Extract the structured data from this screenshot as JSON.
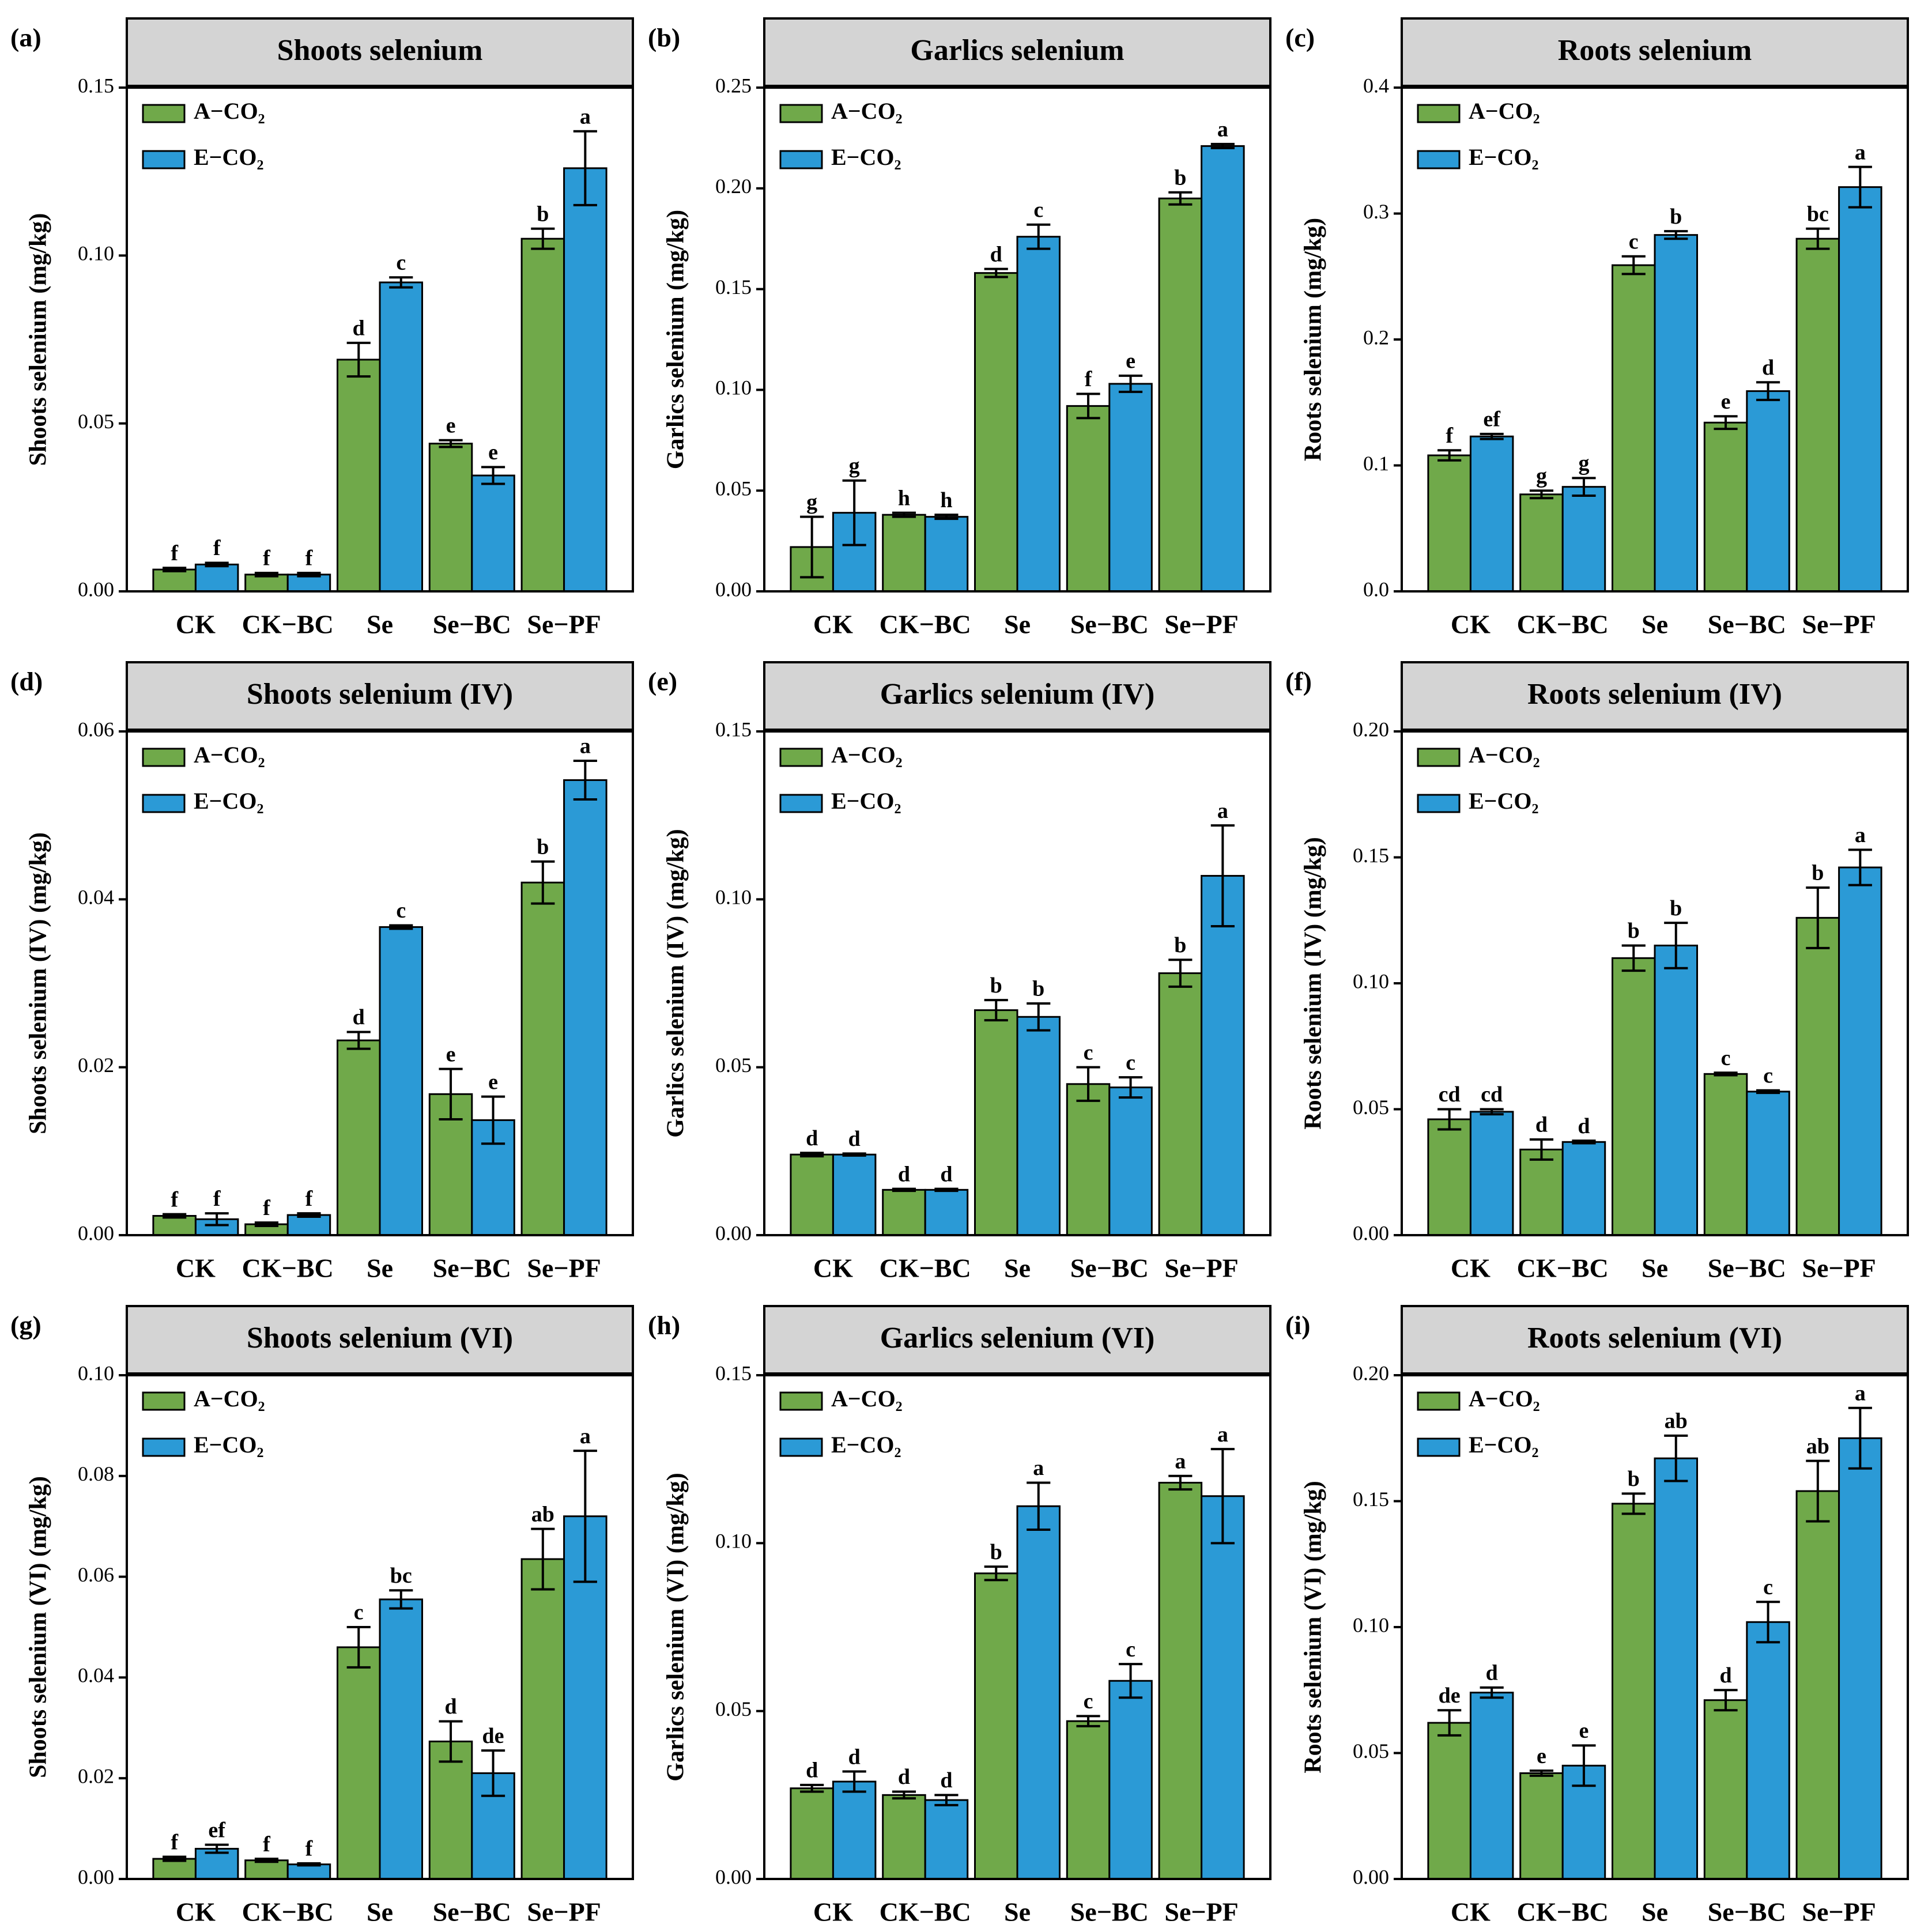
{
  "chart_data": [
    {
      "type": "bar",
      "panel": "(a)",
      "title": "Shoots selenium",
      "ylabel": "Shoots selenium (mg/kg)",
      "categories": [
        "CK",
        "CK−BC",
        "Se",
        "Se−BC",
        "Se−PF"
      ],
      "legend": "upper left",
      "ylim": [
        0,
        0.15
      ],
      "yticks": [
        {
          "value": 0,
          "label": "0.00"
        },
        {
          "value": 0.05,
          "label": "0.05"
        },
        {
          "value": 0.1,
          "label": "0.10"
        },
        {
          "value": 0.15,
          "label": "0.15"
        }
      ],
      "series": [
        {
          "name": "A−CO₂",
          "color": "#70a94a",
          "values": [
            0.0065,
            0.005,
            0.069,
            0.044,
            0.105
          ],
          "errors": [
            0.0005,
            0.0005,
            0.005,
            0.001,
            0.003
          ],
          "letters": [
            "f",
            "f",
            "d",
            "e",
            "b"
          ]
        },
        {
          "name": "E−CO₂",
          "color": "#2b9ad6",
          "values": [
            0.008,
            0.005,
            0.092,
            0.0345,
            0.126
          ],
          "errors": [
            0.0005,
            0.0005,
            0.0015,
            0.0025,
            0.011
          ],
          "letters": [
            "f",
            "f",
            "c",
            "e",
            "a"
          ]
        }
      ]
    },
    {
      "type": "bar",
      "panel": "(b)",
      "title": "Garlics selenium",
      "ylabel": "Garlics selenium (mg/kg)",
      "categories": [
        "CK",
        "CK−BC",
        "Se",
        "Se−BC",
        "Se−PF"
      ],
      "legend": "upper left",
      "ylim": [
        0,
        0.25
      ],
      "yticks": [
        {
          "value": 0,
          "label": "0.00"
        },
        {
          "value": 0.05,
          "label": "0.05"
        },
        {
          "value": 0.1,
          "label": "0.10"
        },
        {
          "value": 0.15,
          "label": "0.15"
        },
        {
          "value": 0.2,
          "label": "0.20"
        },
        {
          "value": 0.25,
          "label": "0.25"
        }
      ],
      "series": [
        {
          "name": "A−CO₂",
          "color": "#70a94a",
          "values": [
            0.022,
            0.038,
            0.158,
            0.092,
            0.195
          ],
          "errors": [
            0.015,
            0.001,
            0.002,
            0.006,
            0.003
          ],
          "letters": [
            "g",
            "h",
            "d",
            "f",
            "b"
          ]
        },
        {
          "name": "E−CO₂",
          "color": "#2b9ad6",
          "values": [
            0.039,
            0.037,
            0.176,
            0.103,
            0.221
          ],
          "errors": [
            0.016,
            0.001,
            0.006,
            0.004,
            0.001
          ],
          "letters": [
            "g",
            "h",
            "c",
            "e",
            "a"
          ]
        }
      ]
    },
    {
      "type": "bar",
      "panel": "(c)",
      "title": "Roots selenium",
      "ylabel": "Roots selenium (mg/kg)",
      "categories": [
        "CK",
        "CK−BC",
        "Se",
        "Se−BC",
        "Se−PF"
      ],
      "legend": "upper left",
      "ylim": [
        0,
        0.4
      ],
      "yticks": [
        {
          "value": 0,
          "label": "0.0"
        },
        0.1,
        0.2,
        0.3,
        0.4
      ],
      "series": [
        {
          "name": "A−CO₂",
          "color": "#70a94a",
          "values": [
            0.108,
            0.077,
            0.259,
            0.134,
            0.28
          ],
          "errors": [
            0.004,
            0.003,
            0.007,
            0.005,
            0.008
          ],
          "letters": [
            "f",
            "g",
            "c",
            "e",
            "bc"
          ]
        },
        {
          "name": "E−CO₂",
          "color": "#2b9ad6",
          "values": [
            0.123,
            0.083,
            0.283,
            0.159,
            0.321
          ],
          "errors": [
            0.002,
            0.007,
            0.003,
            0.007,
            0.016
          ],
          "letters": [
            "ef",
            "g",
            "b",
            "d",
            "a"
          ]
        }
      ]
    },
    {
      "type": "bar",
      "panel": "(d)",
      "title": "Shoots selenium (IV)",
      "ylabel": "Shoots selenium (IV) (mg/kg)",
      "categories": [
        "CK",
        "CK−BC",
        "Se",
        "Se−BC",
        "Se−PF"
      ],
      "legend": "upper left",
      "ylim": [
        0,
        0.06
      ],
      "yticks": [
        {
          "value": 0,
          "label": "0.00"
        },
        0.02,
        0.04,
        0.06
      ],
      "series": [
        {
          "name": "A−CO₂",
          "color": "#70a94a",
          "values": [
            0.0023,
            0.0013,
            0.0232,
            0.0168,
            0.042
          ],
          "errors": [
            0.0002,
            0.0002,
            0.001,
            0.003,
            0.0025
          ],
          "letters": [
            "f",
            "f",
            "d",
            "e",
            "b"
          ]
        },
        {
          "name": "E−CO₂",
          "color": "#2b9ad6",
          "values": [
            0.0019,
            0.0024,
            0.0367,
            0.0137,
            0.0542
          ],
          "errors": [
            0.0007,
            0.0002,
            0.0002,
            0.0028,
            0.0023
          ],
          "letters": [
            "f",
            "f",
            "c",
            "e",
            "a"
          ]
        }
      ]
    },
    {
      "type": "bar",
      "panel": "(e)",
      "title": "Garlics selenium (IV)",
      "ylabel": "Garlics selenium (IV) (mg/kg)",
      "categories": [
        "CK",
        "CK−BC",
        "Se",
        "Se−BC",
        "Se−PF"
      ],
      "legend": "upper left",
      "ylim": [
        0,
        0.15
      ],
      "yticks": [
        {
          "value": 0,
          "label": "0.00"
        },
        0.05,
        {
          "value": 0.1,
          "label": "0.10"
        },
        0.15
      ],
      "series": [
        {
          "name": "A−CO₂",
          "color": "#70a94a",
          "values": [
            0.024,
            0.0135,
            0.067,
            0.045,
            0.078
          ],
          "errors": [
            0.0005,
            0.0003,
            0.003,
            0.005,
            0.004
          ],
          "letters": [
            "d",
            "d",
            "b",
            "c",
            "b"
          ]
        },
        {
          "name": "E−CO₂",
          "color": "#2b9ad6",
          "values": [
            0.024,
            0.0135,
            0.065,
            0.044,
            0.107
          ],
          "errors": [
            0.0003,
            0.0003,
            0.004,
            0.003,
            0.015
          ],
          "letters": [
            "d",
            "d",
            "b",
            "c",
            "a"
          ]
        }
      ]
    },
    {
      "type": "bar",
      "panel": "(f)",
      "title": "Roots selenium (IV)",
      "ylabel": "Roots selenium (IV) (mg/kg)",
      "categories": [
        "CK",
        "CK−BC",
        "Se",
        "Se−BC",
        "Se−PF"
      ],
      "legend": "upper left",
      "ylim": [
        0,
        0.2
      ],
      "yticks": [
        {
          "value": 0,
          "label": "0.00"
        },
        0.05,
        {
          "value": 0.1,
          "label": "0.10"
        },
        0.15,
        {
          "value": 0.2,
          "label": "0.20"
        }
      ],
      "series": [
        {
          "name": "A−CO₂",
          "color": "#70a94a",
          "values": [
            0.046,
            0.034,
            0.11,
            0.064,
            0.126
          ],
          "errors": [
            0.004,
            0.004,
            0.005,
            0.0005,
            0.012
          ],
          "letters": [
            "cd",
            "d",
            "b",
            "c",
            "b"
          ]
        },
        {
          "name": "E−CO₂",
          "color": "#2b9ad6",
          "values": [
            0.049,
            0.037,
            0.115,
            0.057,
            0.146
          ],
          "errors": [
            0.001,
            0.0005,
            0.009,
            0.0005,
            0.007
          ],
          "letters": [
            "cd",
            "d",
            "b",
            "c",
            "a"
          ]
        }
      ]
    },
    {
      "type": "bar",
      "panel": "(g)",
      "title": "Shoots selenium (VI)",
      "ylabel": "Shoots selenium (VI) (mg/kg)",
      "categories": [
        "CK",
        "CK−BC",
        "Se",
        "Se−BC",
        "Se−PF"
      ],
      "legend": "upper left",
      "ylim": [
        0,
        0.1
      ],
      "yticks": [
        {
          "value": 0,
          "label": "0.00"
        },
        0.02,
        0.04,
        0.06,
        0.08,
        {
          "value": 0.1,
          "label": "0.10"
        }
      ],
      "series": [
        {
          "name": "A−CO₂",
          "color": "#70a94a",
          "values": [
            0.004,
            0.0037,
            0.046,
            0.0273,
            0.0635
          ],
          "errors": [
            0.0004,
            0.0003,
            0.004,
            0.004,
            0.006
          ],
          "letters": [
            "f",
            "f",
            "c",
            "d",
            "ab"
          ]
        },
        {
          "name": "E−CO₂",
          "color": "#2b9ad6",
          "values": [
            0.006,
            0.0029,
            0.0555,
            0.021,
            0.072
          ],
          "errors": [
            0.0008,
            0.0002,
            0.0018,
            0.0045,
            0.013
          ],
          "letters": [
            "ef",
            "f",
            "bc",
            "de",
            "a"
          ]
        }
      ]
    },
    {
      "type": "bar",
      "panel": "(h)",
      "title": "Garlics selenium (VI)",
      "ylabel": "Garlics selenium (VI) (mg/kg)",
      "categories": [
        "CK",
        "CK−BC",
        "Se",
        "Se−BC",
        "Se−PF"
      ],
      "legend": "upper left",
      "ylim": [
        0,
        0.15
      ],
      "yticks": [
        {
          "value": 0,
          "label": "0.00"
        },
        0.05,
        {
          "value": 0.1,
          "label": "0.10"
        },
        0.15
      ],
      "series": [
        {
          "name": "A−CO₂",
          "color": "#70a94a",
          "values": [
            0.027,
            0.025,
            0.091,
            0.047,
            0.118
          ],
          "errors": [
            0.001,
            0.001,
            0.002,
            0.0015,
            0.002
          ],
          "letters": [
            "d",
            "d",
            "b",
            "c",
            "a"
          ]
        },
        {
          "name": "E−CO₂",
          "color": "#2b9ad6",
          "values": [
            0.029,
            0.0235,
            0.111,
            0.059,
            0.114
          ],
          "errors": [
            0.003,
            0.0015,
            0.007,
            0.005,
            0.014
          ],
          "letters": [
            "d",
            "d",
            "a",
            "c",
            "a"
          ]
        }
      ]
    },
    {
      "type": "bar",
      "panel": "(i)",
      "title": "Roots selenium (VI)",
      "ylabel": "Roots selenium (VI) (mg/kg)",
      "categories": [
        "CK",
        "CK−BC",
        "Se",
        "Se−BC",
        "Se−PF"
      ],
      "legend": "upper left",
      "ylim": [
        0,
        0.2
      ],
      "yticks": [
        {
          "value": 0,
          "label": "0.00"
        },
        0.05,
        {
          "value": 0.1,
          "label": "0.10"
        },
        0.15,
        {
          "value": 0.2,
          "label": "0.20"
        }
      ],
      "series": [
        {
          "name": "A−CO₂",
          "color": "#70a94a",
          "values": [
            0.062,
            0.042,
            0.149,
            0.071,
            0.154
          ],
          "errors": [
            0.005,
            0.001,
            0.004,
            0.004,
            0.012
          ],
          "letters": [
            "de",
            "e",
            "b",
            "d",
            "ab"
          ]
        },
        {
          "name": "E−CO₂",
          "color": "#2b9ad6",
          "values": [
            0.074,
            0.045,
            0.167,
            0.102,
            0.175
          ],
          "errors": [
            0.002,
            0.008,
            0.009,
            0.008,
            0.012
          ],
          "letters": [
            "d",
            "e",
            "ab",
            "c",
            "a"
          ]
        }
      ]
    }
  ]
}
